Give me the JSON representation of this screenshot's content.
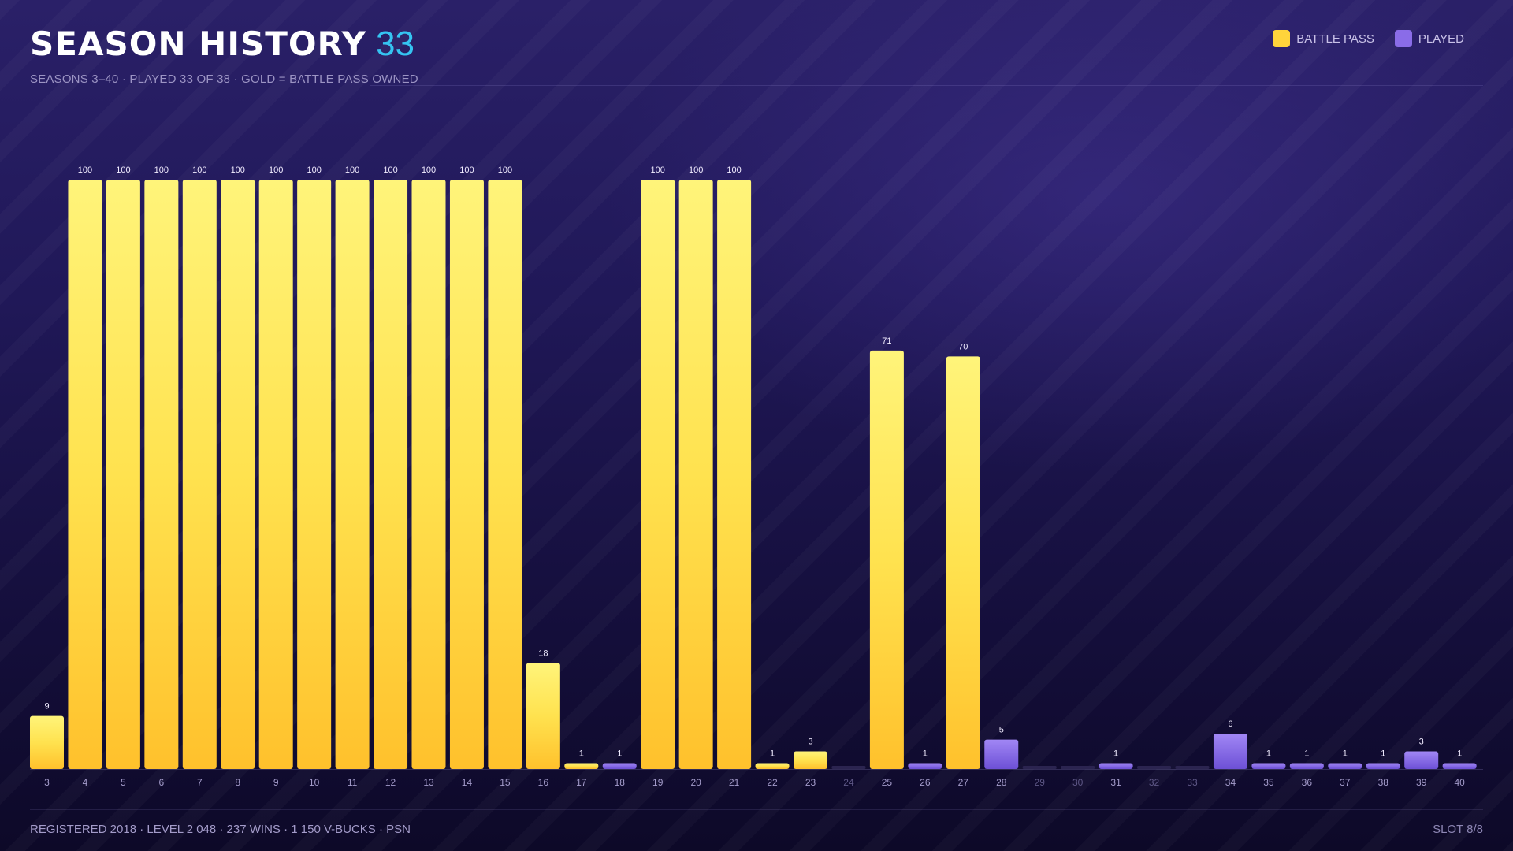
{
  "header": {
    "title": "SEASON HISTORY",
    "title_count": "33",
    "subtitle": "SEASONS 3–40  ·  PLAYED 33 OF 38  ·  GOLD = BATTLE PASS OWNED"
  },
  "legend": {
    "battle_pass_label": "BATTLE PASS",
    "played_label": "PLAYED"
  },
  "colors": {
    "battle_pass": "#ffd43b",
    "played": "#8a6ce8",
    "unplayed": "#2b2450",
    "accent": "#35c4f2"
  },
  "footer": {
    "stats": "REGISTERED 2018  ·  LEVEL 2 048  ·  237 WINS  ·  1 150 V-BUCKS  ·  PSN",
    "slot": "SLOT 8/8"
  },
  "chart_data": {
    "type": "bar",
    "categories": [
      "3",
      "4",
      "5",
      "6",
      "7",
      "8",
      "9",
      "10",
      "11",
      "12",
      "13",
      "14",
      "15",
      "16",
      "17",
      "18",
      "19",
      "20",
      "21",
      "22",
      "23",
      "24",
      "25",
      "26",
      "27",
      "28",
      "29",
      "30",
      "31",
      "32",
      "33",
      "34",
      "35",
      "36",
      "37",
      "38",
      "39",
      "40"
    ],
    "values": [
      9,
      100,
      100,
      100,
      100,
      100,
      100,
      100,
      100,
      100,
      100,
      100,
      100,
      18,
      1,
      1,
      100,
      100,
      100,
      1,
      3,
      null,
      71,
      1,
      70,
      5,
      null,
      null,
      1,
      null,
      null,
      6,
      1,
      1,
      1,
      1,
      3,
      1
    ],
    "status": [
      "bp",
      "bp",
      "bp",
      "bp",
      "bp",
      "bp",
      "bp",
      "bp",
      "bp",
      "bp",
      "bp",
      "bp",
      "bp",
      "bp",
      "bp",
      "played",
      "bp",
      "bp",
      "bp",
      "bp",
      "bp",
      "none",
      "bp",
      "played",
      "bp",
      "played",
      "none",
      "none",
      "played",
      "none",
      "none",
      "played",
      "played",
      "played",
      "played",
      "played",
      "played",
      "played"
    ],
    "ylim": [
      0,
      100
    ],
    "grid": false,
    "legend_position": "top-right"
  }
}
